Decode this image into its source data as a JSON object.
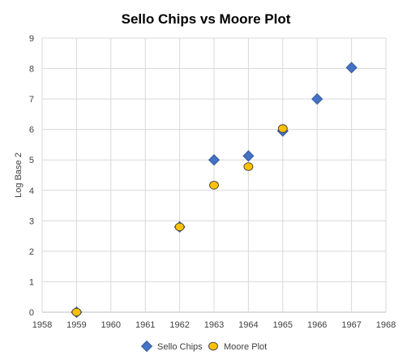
{
  "chart_data": {
    "type": "scatter",
    "title": "Sello Chips vs Moore Plot",
    "xlabel": "",
    "ylabel": "Log Base 2",
    "xlim": [
      1958,
      1968
    ],
    "ylim": [
      0,
      9
    ],
    "x_ticks": [
      "1958",
      "1959",
      "1960",
      "1961",
      "1962",
      "1963",
      "1964",
      "1965",
      "1966",
      "1967",
      "1968"
    ],
    "y_ticks": [
      "0",
      "1",
      "2",
      "3",
      "4",
      "5",
      "6",
      "7",
      "8",
      "9"
    ],
    "grid": true,
    "legend_position": "bottom",
    "series": [
      {
        "name": "Sello Chips",
        "marker": "diamond",
        "color": "#4472c4",
        "points": [
          {
            "x": 1959,
            "y": 0
          },
          {
            "x": 1962,
            "y": 2.8
          },
          {
            "x": 1963,
            "y": 5.0
          },
          {
            "x": 1964,
            "y": 5.13
          },
          {
            "x": 1965,
            "y": 5.95
          },
          {
            "x": 1966,
            "y": 7.0
          },
          {
            "x": 1967,
            "y": 8.03
          }
        ]
      },
      {
        "name": "Moore Plot",
        "marker": "circle",
        "color": "#ffc000",
        "points": [
          {
            "x": 1959,
            "y": 0
          },
          {
            "x": 1962,
            "y": 2.8
          },
          {
            "x": 1963,
            "y": 4.17
          },
          {
            "x": 1964,
            "y": 4.78
          },
          {
            "x": 1965,
            "y": 6.03
          }
        ]
      }
    ]
  }
}
